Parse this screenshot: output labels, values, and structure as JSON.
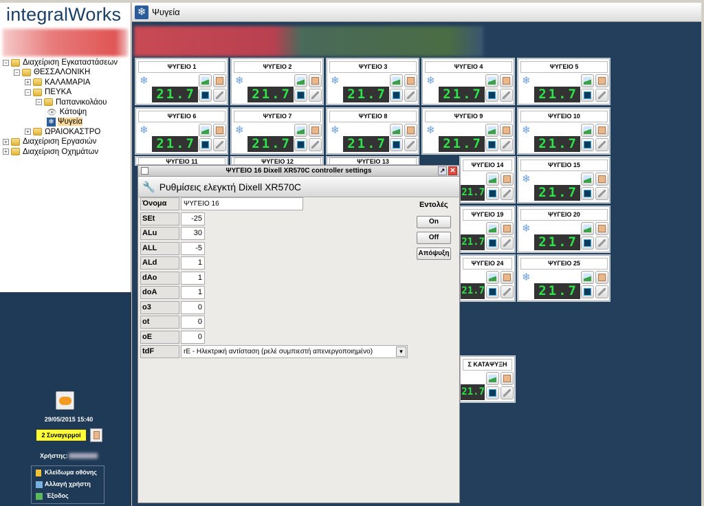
{
  "app": {
    "logo": "integralWorks"
  },
  "tree": [
    {
      "label": "Διαχείριση Εγκαταστάσεων",
      "level": 0,
      "exp": "−"
    },
    {
      "label": "ΘΕΣΣΑΛΟΝΙΚΗ",
      "level": 1,
      "exp": "−"
    },
    {
      "label": "ΚΑΛΑΜΑΡΙΑ",
      "level": 2,
      "exp": "+"
    },
    {
      "label": "ΠΕΥΚΑ",
      "level": 2,
      "exp": "−"
    },
    {
      "label": "Παπανικολάου",
      "level": 3,
      "exp": "−"
    },
    {
      "label": "Κάτοψη",
      "level": 4,
      "icon": "eye-icon"
    },
    {
      "label": "Ψυγεία",
      "level": 4,
      "icon": "snowflake-icon",
      "selected": true
    },
    {
      "label": "ΩΡΑΙΟΚΑΣΤΡΟ",
      "level": 2,
      "exp": "+"
    },
    {
      "label": "Διαχείριση Εργασιών",
      "level": 0,
      "exp": "+"
    },
    {
      "label": "Διαχείριση Οχημάτων",
      "level": 0,
      "exp": "+"
    }
  ],
  "sidebar": {
    "datetime": "29/05/2015 15:40",
    "alarms": "2 Συναγερμοί",
    "user_label": "Χρήστης:",
    "menu": [
      "Κλείδωμα οθόνης",
      "Αλλαγή χρήστη",
      "Έξοδος"
    ]
  },
  "main": {
    "title": "Ψυγεία"
  },
  "tiles": {
    "display": "21.7",
    "titles": [
      "ΨΥΓΕΙΟ 1",
      "ΨΥΓΕΙΟ 2",
      "ΨΥΓΕΙΟ 3",
      "ΨΥΓΕΙΟ 4",
      "ΨΥΓΕΙΟ 5",
      "ΨΥΓΕΙΟ 6",
      "ΨΥΓΕΙΟ 7",
      "ΨΥΓΕΙΟ 8",
      "ΨΥΓΕΙΟ 9",
      "ΨΥΓΕΙΟ 10",
      "ΨΥΓΕΙΟ 11",
      "ΨΥΓΕΙΟ 12",
      "ΨΥΓΕΙΟ 13",
      "ΨΥΓΕΙΟ 14",
      "ΨΥΓΕΙΟ 15",
      "",
      "",
      "",
      "ΨΥΓΕΙΟ 19",
      "ΨΥΓΕΙΟ 20",
      "",
      "",
      "",
      "ΨΥΓΕΙΟ 24",
      "ΨΥΓΕΙΟ 25"
    ],
    "extra": "Σ ΚΑΤΑΨΥΞΗ"
  },
  "dialog": {
    "window_title": "ΨΥΓΕΙΟ 16 Dixell XR570C controller settings",
    "header": "Ρυθμίσεις ελεγκτή Dixell XR570C",
    "name_label": "Όνομα",
    "name_value": "ΨΥΓΕΙΟ 16",
    "params": [
      [
        "SEt",
        "-25"
      ],
      [
        "ALu",
        "30"
      ],
      [
        "ALL",
        "-5"
      ],
      [
        "ALd",
        "1"
      ],
      [
        "dAo",
        "1"
      ],
      [
        "doA",
        "1"
      ],
      [
        "o3",
        "0"
      ],
      [
        "ot",
        "0"
      ],
      [
        "oE",
        "0"
      ]
    ],
    "tdf_label": "tdF",
    "tdf_value": "rE - Ηλεκτρική αντίσταση (ρελέ συμπιεστή απενεργοποιημένο)",
    "commands_label": "Εντολές",
    "buttons": [
      "On",
      "Off",
      "Απόψυξη"
    ]
  }
}
